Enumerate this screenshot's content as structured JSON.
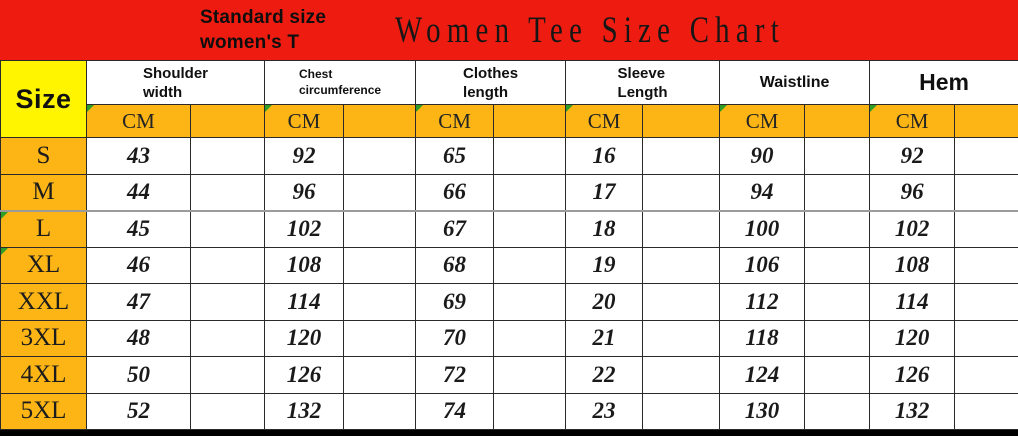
{
  "colors": {
    "banner_red": "#ee1c10",
    "header_yellow": "#fff500",
    "cell_orange": "#fcb514",
    "indicator_green": "#2e9e27"
  },
  "chart_data": {
    "type": "table",
    "title": "Women Tee Size Chart",
    "subtitle": [
      "Standard size",
      "women's T"
    ],
    "row_header": "Size",
    "unit": "CM",
    "columns": [
      {
        "name": "Shoulder width",
        "lines": [
          "Shoulder",
          "width"
        ]
      },
      {
        "name": "Chest circumference",
        "lines": [
          "Chest",
          "circumference"
        ]
      },
      {
        "name": "Clothes length",
        "lines": [
          "Clothes",
          "length"
        ]
      },
      {
        "name": "Sleeve Length",
        "lines": [
          "Sleeve",
          "Length"
        ]
      },
      {
        "name": "Waistline",
        "lines": [
          "Waistline"
        ]
      },
      {
        "name": "Hem",
        "lines": [
          "Hem"
        ]
      }
    ],
    "rows": [
      {
        "size": "S",
        "values": [
          43,
          92,
          65,
          16,
          90,
          92
        ]
      },
      {
        "size": "M",
        "values": [
          44,
          96,
          66,
          17,
          94,
          96
        ]
      },
      {
        "size": "L",
        "values": [
          45,
          102,
          67,
          18,
          100,
          102
        ]
      },
      {
        "size": "XL",
        "values": [
          46,
          108,
          68,
          19,
          106,
          108
        ]
      },
      {
        "size": "XXL",
        "values": [
          47,
          114,
          69,
          20,
          112,
          114
        ]
      },
      {
        "size": "3XL",
        "values": [
          48,
          120,
          70,
          21,
          118,
          120
        ]
      },
      {
        "size": "4XL",
        "values": [
          50,
          126,
          72,
          22,
          124,
          126
        ]
      },
      {
        "size": "5XL",
        "values": [
          52,
          132,
          74,
          23,
          130,
          132
        ]
      }
    ]
  }
}
